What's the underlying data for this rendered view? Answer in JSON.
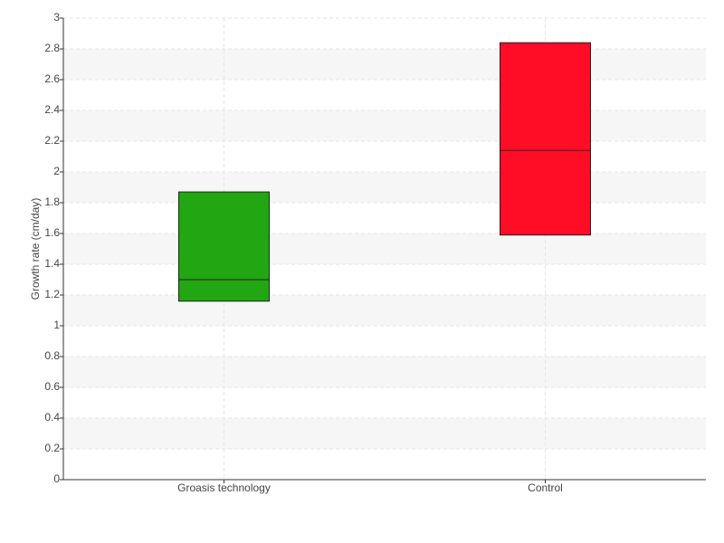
{
  "chart_data": {
    "type": "box",
    "y_label": "Growth rate (cm/day)",
    "categories": [
      "Groasis technology",
      "Control"
    ],
    "q1": [
      1.16,
      1.59
    ],
    "median": [
      1.3,
      2.14
    ],
    "q3": [
      1.87,
      2.84
    ],
    "colors": [
      "#22a612",
      "#ff0c27"
    ],
    "ylim": [
      0,
      3
    ],
    "yticks": [
      0,
      0.2,
      0.4,
      0.6,
      0.8,
      1,
      1.2,
      1.4,
      1.6,
      1.8,
      2,
      2.2,
      2.4,
      2.6,
      2.8,
      3
    ],
    "grid": true
  }
}
